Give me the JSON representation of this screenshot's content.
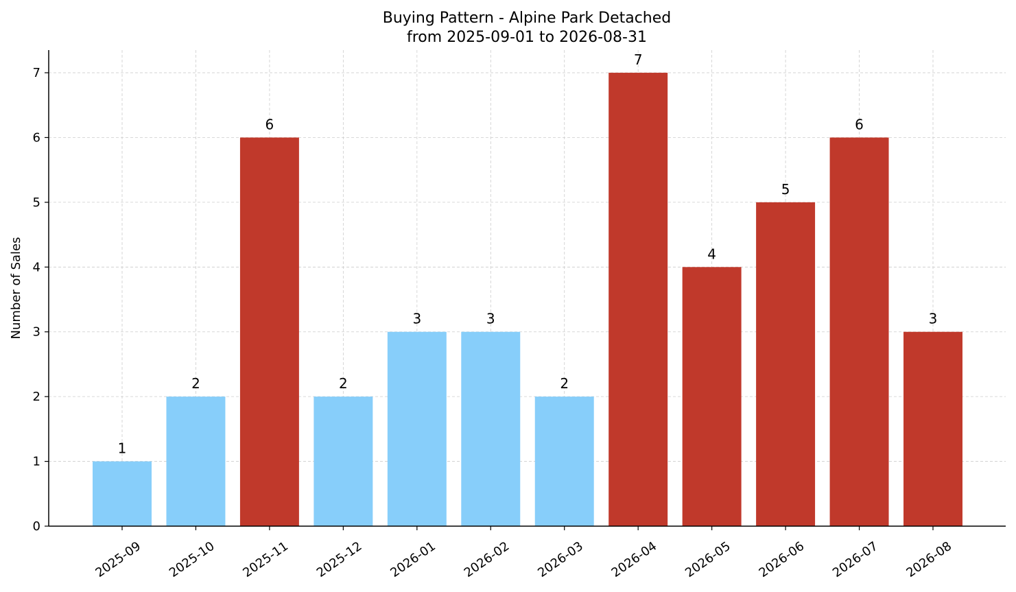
{
  "chart_data": {
    "type": "bar",
    "title": "Buying Pattern - Alpine Park Detached",
    "subtitle": "from 2025-09-01 to 2026-08-31",
    "xlabel": "",
    "ylabel": "Number of Sales",
    "categories": [
      "2025-09",
      "2025-10",
      "2025-11",
      "2025-12",
      "2026-01",
      "2026-02",
      "2026-03",
      "2026-04",
      "2026-05",
      "2026-06",
      "2026-07",
      "2026-08"
    ],
    "values": [
      1,
      2,
      6,
      2,
      3,
      3,
      2,
      7,
      4,
      5,
      6,
      3
    ],
    "highlighted": [
      false,
      false,
      true,
      false,
      false,
      false,
      false,
      true,
      true,
      true,
      true,
      true
    ],
    "ylim": [
      0,
      7.35
    ],
    "yticks": [
      0,
      1,
      2,
      3,
      4,
      5,
      6,
      7
    ],
    "grid": true,
    "colors": {
      "normal": "#87CEFA",
      "highlight": "#C0392B"
    }
  }
}
